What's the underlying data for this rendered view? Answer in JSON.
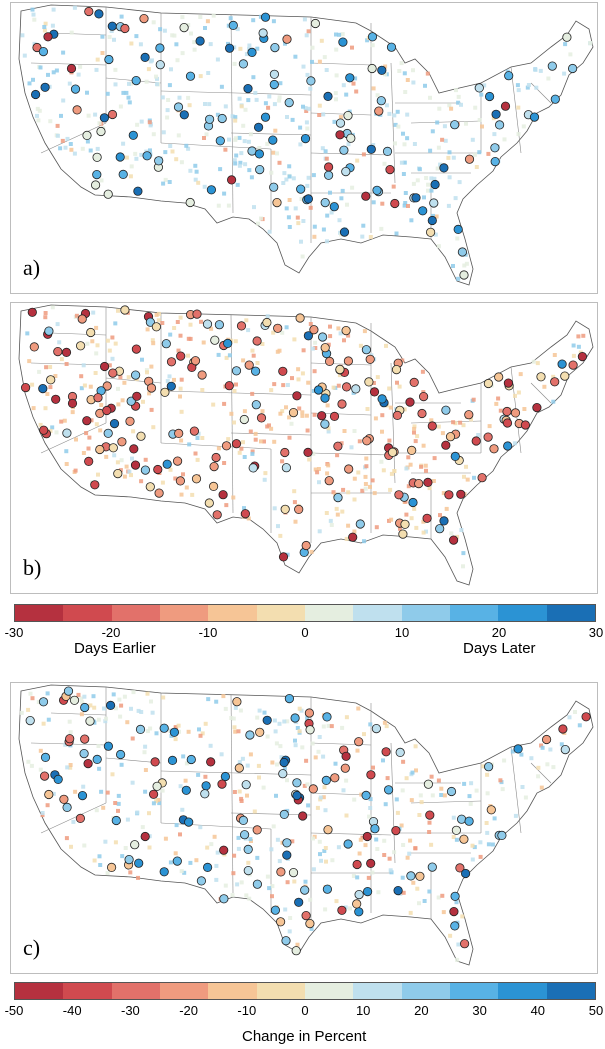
{
  "panels": [
    {
      "label": "a)",
      "n_circles": 130,
      "n_squares": 460,
      "bias": 0.15,
      "seed": 11
    },
    {
      "label": "b)",
      "n_circles": 210,
      "n_squares": 430,
      "bias": 0.78,
      "seed": 29
    },
    {
      "label": "c)",
      "n_circles": 150,
      "n_squares": 420,
      "bias": 0.35,
      "seed": 47
    }
  ],
  "colorbar_days": {
    "ticks": [
      "-30",
      "-20",
      "-10",
      "0",
      "10",
      "20",
      "30"
    ],
    "left_caption": "Days Earlier",
    "right_caption": "Days Later",
    "colors": [
      "#b5313f",
      "#d04a4f",
      "#e2716a",
      "#ef9b7f",
      "#f6c596",
      "#f3deb0",
      "#e5eee0",
      "#bfe0ee",
      "#8fcbea",
      "#58b2e5",
      "#2b93d4",
      "#1a6fb5"
    ]
  },
  "colorbar_percent": {
    "ticks": [
      "-50",
      "-40",
      "-30",
      "-20",
      "-10",
      "0",
      "10",
      "20",
      "30",
      "40",
      "50"
    ],
    "caption": "Change in Percent",
    "colors": [
      "#b5313f",
      "#d04a4f",
      "#e2716a",
      "#ef9b7f",
      "#f6c596",
      "#f3deb0",
      "#e5eee0",
      "#bfe0ee",
      "#8fcbea",
      "#58b2e5",
      "#2b93d4",
      "#1a6fb5"
    ]
  }
}
